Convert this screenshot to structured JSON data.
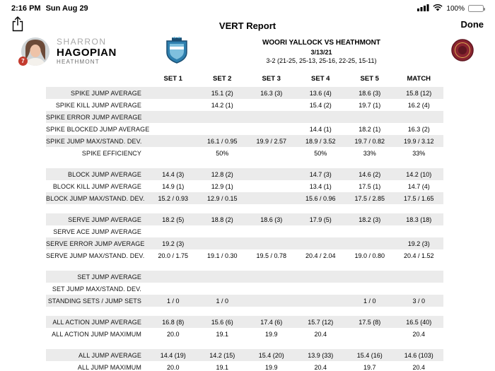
{
  "status_bar": {
    "time": "2:16 PM",
    "date": "Sun Aug 29",
    "battery": "100%"
  },
  "nav": {
    "title": "VERT Report",
    "done_label": "Done"
  },
  "player": {
    "first_name": "SHARRON",
    "last_name": "HAGOPIAN",
    "team": "HEATHMONT",
    "badge": "7"
  },
  "match": {
    "title": "WOORI YALLOCK VS HEATHMONT",
    "date": "3/13/21",
    "score": "3-2 (21-25, 25-13, 25-16, 22-25, 15-11)"
  },
  "colors": {
    "stripe": "#ebebeb",
    "badge_red": "#c43b2e",
    "home_logo_blue": "#2e7fae",
    "away_logo_maroon": "#8a2430"
  },
  "table": {
    "columns": [
      "SET 1",
      "SET 2",
      "SET 3",
      "SET 4",
      "SET 5",
      "MATCH"
    ],
    "groups": [
      {
        "rows": [
          {
            "label": "SPIKE JUMP AVERAGE",
            "values": [
              "",
              "15.1 (2)",
              "16.3 (3)",
              "13.6 (4)",
              "18.6 (3)",
              "15.8 (12)"
            ]
          },
          {
            "label": "SPIKE KILL JUMP AVERAGE",
            "values": [
              "",
              "14.2 (1)",
              "",
              "15.4 (2)",
              "19.7 (1)",
              "16.2 (4)"
            ]
          },
          {
            "label": "SPIKE ERROR JUMP AVERAGE",
            "values": [
              "",
              "",
              "",
              "",
              "",
              ""
            ]
          },
          {
            "label": "SPIKE BLOCKED JUMP AVERAGE",
            "values": [
              "",
              "",
              "",
              "14.4 (1)",
              "18.2 (1)",
              "16.3 (2)"
            ]
          },
          {
            "label": "SPIKE JUMP MAX/STAND. DEV.",
            "values": [
              "",
              "16.1 / 0.95",
              "19.9 / 2.57",
              "18.9 / 3.52",
              "19.7 / 0.82",
              "19.9 / 3.12"
            ]
          },
          {
            "label": "SPIKE EFFICIENCY",
            "values": [
              "",
              "50%",
              "",
              "50%",
              "33%",
              "33%"
            ]
          }
        ]
      },
      {
        "rows": [
          {
            "label": "BLOCK JUMP AVERAGE",
            "values": [
              "14.4 (3)",
              "12.8 (2)",
              "",
              "14.7 (3)",
              "14.6 (2)",
              "14.2 (10)"
            ]
          },
          {
            "label": "BLOCK KILL JUMP AVERAGE",
            "values": [
              "14.9 (1)",
              "12.9 (1)",
              "",
              "13.4 (1)",
              "17.5 (1)",
              "14.7 (4)"
            ]
          },
          {
            "label": "BLOCK JUMP MAX/STAND. DEV.",
            "values": [
              "15.2 / 0.93",
              "12.9 / 0.15",
              "",
              "15.6 / 0.96",
              "17.5 / 2.85",
              "17.5 / 1.65"
            ]
          }
        ]
      },
      {
        "rows": [
          {
            "label": "SERVE JUMP AVERAGE",
            "values": [
              "18.2 (5)",
              "18.8 (2)",
              "18.6 (3)",
              "17.9 (5)",
              "18.2 (3)",
              "18.3 (18)"
            ]
          },
          {
            "label": "SERVE ACE JUMP AVERAGE",
            "values": [
              "",
              "",
              "",
              "",
              "",
              ""
            ]
          },
          {
            "label": "SERVE ERROR JUMP AVERAGE",
            "values": [
              "19.2 (3)",
              "",
              "",
              "",
              "",
              "19.2 (3)"
            ]
          },
          {
            "label": "SERVE JUMP MAX/STAND. DEV.",
            "values": [
              "20.0 / 1.75",
              "19.1 / 0.30",
              "19.5 / 0.78",
              "20.4 / 2.04",
              "19.0 / 0.80",
              "20.4 / 1.52"
            ]
          }
        ]
      },
      {
        "rows": [
          {
            "label": "SET JUMP AVERAGE",
            "values": [
              "",
              "",
              "",
              "",
              "",
              ""
            ]
          },
          {
            "label": "SET JUMP MAX/STAND. DEV.",
            "values": [
              "",
              "",
              "",
              "",
              "",
              ""
            ]
          },
          {
            "label": "STANDING SETS / JUMP SETS",
            "values": [
              "1 / 0",
              "1 / 0",
              "",
              "",
              "1 / 0",
              "3 / 0"
            ]
          }
        ]
      },
      {
        "rows": [
          {
            "label": "ALL ACTION JUMP AVERAGE",
            "values": [
              "16.8 (8)",
              "15.6 (6)",
              "17.4 (6)",
              "15.7 (12)",
              "17.5 (8)",
              "16.5 (40)"
            ]
          },
          {
            "label": "ALL ACTION JUMP MAXIMUM",
            "values": [
              "20.0",
              "19.1",
              "19.9",
              "20.4",
              "",
              "20.4"
            ]
          }
        ]
      },
      {
        "rows": [
          {
            "label": "ALL JUMP AVERAGE",
            "values": [
              "14.4 (19)",
              "14.2 (15)",
              "15.4 (20)",
              "13.9 (33)",
              "15.4 (16)",
              "14.6 (103)"
            ]
          },
          {
            "label": "ALL JUMP MAXIMUM",
            "values": [
              "20.0",
              "19.1",
              "19.9",
              "20.4",
              "19.7",
              "20.4"
            ]
          }
        ]
      }
    ]
  }
}
